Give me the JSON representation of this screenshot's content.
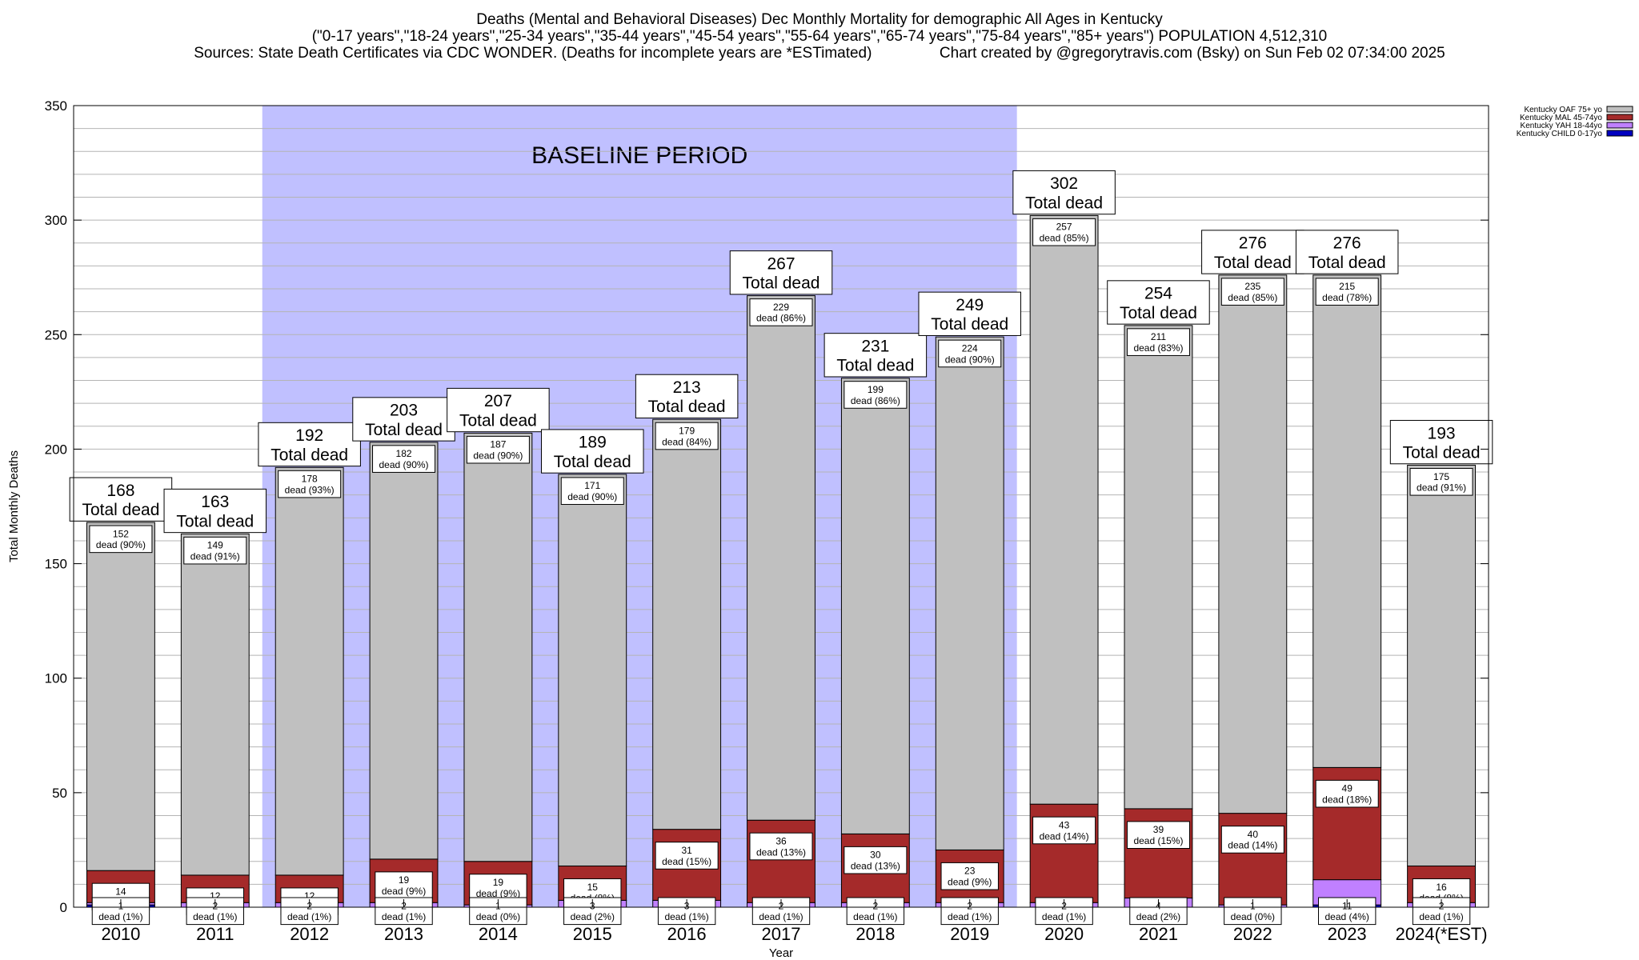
{
  "titles": {
    "line1": "Deaths (Mental and Behavioral Diseases) Dec Monthly Mortality for demographic All Ages in Kentucky",
    "line2": "(\"0-17 years\",\"18-24 years\",\"25-34 years\",\"35-44 years\",\"45-54 years\",\"55-64 years\",\"65-74 years\",\"75-84 years\",\"85+ years\") POPULATION 4,512,310",
    "line3": "Sources: State Death Certificates via CDC WONDER. (Deaths for incomplete years are *ESTimated)                Chart created by @gregorytravis.com (Bsky) on Sun Feb 02 07:34:00 2025"
  },
  "colors": {
    "oaf": "#c0c0c0",
    "mal": "#a52a2a",
    "yah": "#c080ff",
    "child": "#0000c0",
    "baseline": "#c0c0ff"
  },
  "chart_data": {
    "type": "bar",
    "stacked": true,
    "xlabel": "Year",
    "ylabel": "Total Monthly Deaths",
    "ylim": [
      0,
      350
    ],
    "yticks": [
      0,
      50,
      100,
      150,
      200,
      250,
      300,
      350
    ],
    "grid": "horizontal every 10 deaths",
    "baseline_label": "BASELINE PERIOD",
    "baseline_range": [
      "2012",
      "2019"
    ],
    "total_suffix": "Total dead",
    "segment_word": "dead",
    "legend_position": "top-right",
    "categories": [
      "2010",
      "2011",
      "2012",
      "2013",
      "2014",
      "2015",
      "2016",
      "2017",
      "2018",
      "2019",
      "2020",
      "2021",
      "2022",
      "2023",
      "2024(*EST)"
    ],
    "totals": [
      168,
      163,
      192,
      203,
      207,
      189,
      213,
      267,
      231,
      249,
      302,
      254,
      276,
      276,
      193
    ],
    "series": [
      {
        "name": "Kentucky CHILD 0-17yo",
        "key": "child",
        "values": [
          1,
          0,
          0,
          0,
          0,
          0,
          0,
          0,
          0,
          0,
          0,
          0,
          0,
          1,
          0
        ]
      },
      {
        "name": "Kentucky YAH 18-44yo",
        "key": "yah",
        "values": [
          1,
          2,
          2,
          2,
          1,
          3,
          3,
          2,
          2,
          2,
          2,
          4,
          1,
          11,
          2
        ],
        "labels": [
          "dead (1%)",
          "dead (1%)",
          "dead (1%)",
          "dead (1%)",
          "dead (0%)",
          "dead (2%)",
          "dead (1%)",
          "dead (1%)",
          "dead (1%)",
          "dead (1%)",
          "dead (1%)",
          "dead (2%)",
          "dead (0%)",
          "dead (4%)",
          "dead (1%)"
        ]
      },
      {
        "name": "Kentucky MAL 45-74yo",
        "key": "mal",
        "values": [
          14,
          12,
          12,
          19,
          19,
          15,
          31,
          36,
          30,
          23,
          43,
          39,
          40,
          49,
          16
        ],
        "labels": [
          "dead (8%)",
          "dead (7%)",
          "dead (6%)",
          "dead (9%)",
          "dead (9%)",
          "dead (8%)",
          "dead (15%)",
          "dead (13%)",
          "dead (13%)",
          "dead (9%)",
          "dead (14%)",
          "dead (15%)",
          "dead (14%)",
          "dead (18%)",
          "dead (8%)"
        ]
      },
      {
        "name": "Kentucky OAF 75+ yo",
        "key": "oaf",
        "values": [
          152,
          149,
          178,
          182,
          187,
          171,
          179,
          229,
          199,
          224,
          257,
          211,
          235,
          215,
          175
        ],
        "labels": [
          "dead (90%)",
          "dead (91%)",
          "dead (93%)",
          "dead (90%)",
          "dead (90%)",
          "dead (90%)",
          "dead (84%)",
          "dead (86%)",
          "dead (86%)",
          "dead (90%)",
          "dead (85%)",
          "dead (83%)",
          "dead (85%)",
          "dead (78%)",
          "dead (91%)"
        ]
      }
    ]
  }
}
